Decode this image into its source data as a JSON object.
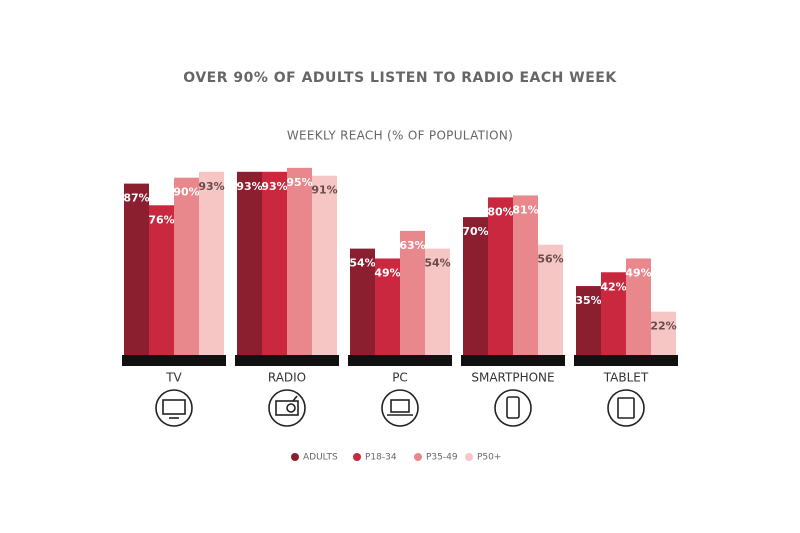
{
  "chart_data": {
    "type": "bar",
    "title": "OVER 90% OF ADULTS LISTEN TO RADIO EACH WEEK",
    "subtitle": "WEEKLY REACH (% OF POPULATION)",
    "categories": [
      "TV",
      "RADIO",
      "PC",
      "SMARTPHONE",
      "TABLET"
    ],
    "series": [
      {
        "name": "ADULTS",
        "color": "#8b1f2f",
        "label_color": "#ffffff",
        "values": [
          87,
          93,
          54,
          70,
          35
        ],
        "value_labels": [
          "87%",
          "93%",
          "54%",
          "70%",
          "35%"
        ]
      },
      {
        "name": "P18-34",
        "color": "#c9283f",
        "label_color": "#ffffff",
        "values": [
          76,
          93,
          49,
          80,
          42
        ],
        "value_labels": [
          "76%",
          "93%",
          "49%",
          "80%",
          "42%"
        ]
      },
      {
        "name": "P35-49",
        "color": "#e8878c",
        "label_color": "#ffffff",
        "values": [
          90,
          95,
          63,
          81,
          49
        ],
        "value_labels": [
          "90%",
          "95%",
          "63%",
          "81%",
          "49%"
        ]
      },
      {
        "name": "P50+",
        "color": "#f5c6c4",
        "label_color": "#6b4a4a",
        "values": [
          93,
          91,
          54,
          56,
          22
        ],
        "value_labels": [
          "93%",
          "91%",
          "54%",
          "56%",
          "22%"
        ]
      }
    ]
  }
}
